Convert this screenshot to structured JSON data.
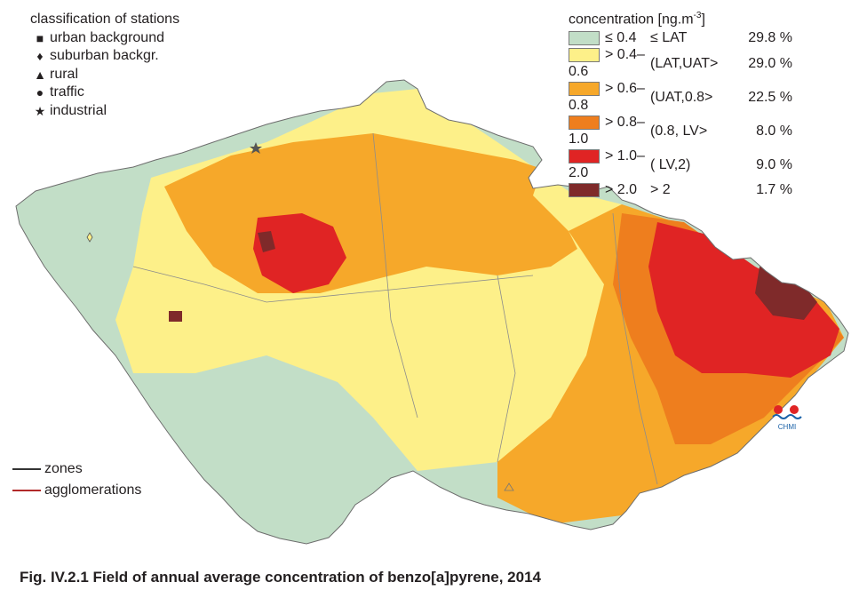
{
  "stations_legend": {
    "title": "classification of stations",
    "items": [
      {
        "symbol": "■",
        "label": "urban background",
        "icon": "square-icon"
      },
      {
        "symbol": "♦",
        "label": "suburban backgr.",
        "icon": "diamond-icon"
      },
      {
        "symbol": "▲",
        "label": "rural",
        "icon": "triangle-icon"
      },
      {
        "symbol": "●",
        "label": "traffic",
        "icon": "circle-icon"
      },
      {
        "symbol": "★",
        "label": "industrial",
        "icon": "star-icon"
      }
    ]
  },
  "concentration_legend": {
    "title": "concentration [ng.m",
    "title_sup": "-3",
    "title_end": "]",
    "classes": [
      {
        "color": "#c2dec7",
        "range": "≤ 0.4",
        "class": "≤ LAT",
        "percent": "29.8 %"
      },
      {
        "color": "#fdf089",
        "range": "> 0.4–0.6",
        "class": "(LAT,UAT>",
        "percent": "29.0 %"
      },
      {
        "color": "#f6a82a",
        "range": "> 0.6–0.8",
        "class": "(UAT,0.8>",
        "percent": "22.5 %"
      },
      {
        "color": "#ee7e1e",
        "range": "> 0.8–1.0",
        "class": "(0.8, LV>",
        "percent": "8.0 %"
      },
      {
        "color": "#e02424",
        "range": "> 1.0–2.0",
        "class": "( LV,2)",
        "percent": "9.0 %"
      },
      {
        "color": "#7f2a2a",
        "range": "> 2.0",
        "class": "> 2",
        "percent": "1.7 %"
      }
    ]
  },
  "line_legend": [
    {
      "label": "zones",
      "color": "#333333"
    },
    {
      "label": "agglomerations",
      "color": "#b22a2a"
    }
  ],
  "logo_text": "CHMI",
  "caption": "Fig. IV.2.1  Field of annual average concentration of benzo[a]pyrene, 2014"
}
